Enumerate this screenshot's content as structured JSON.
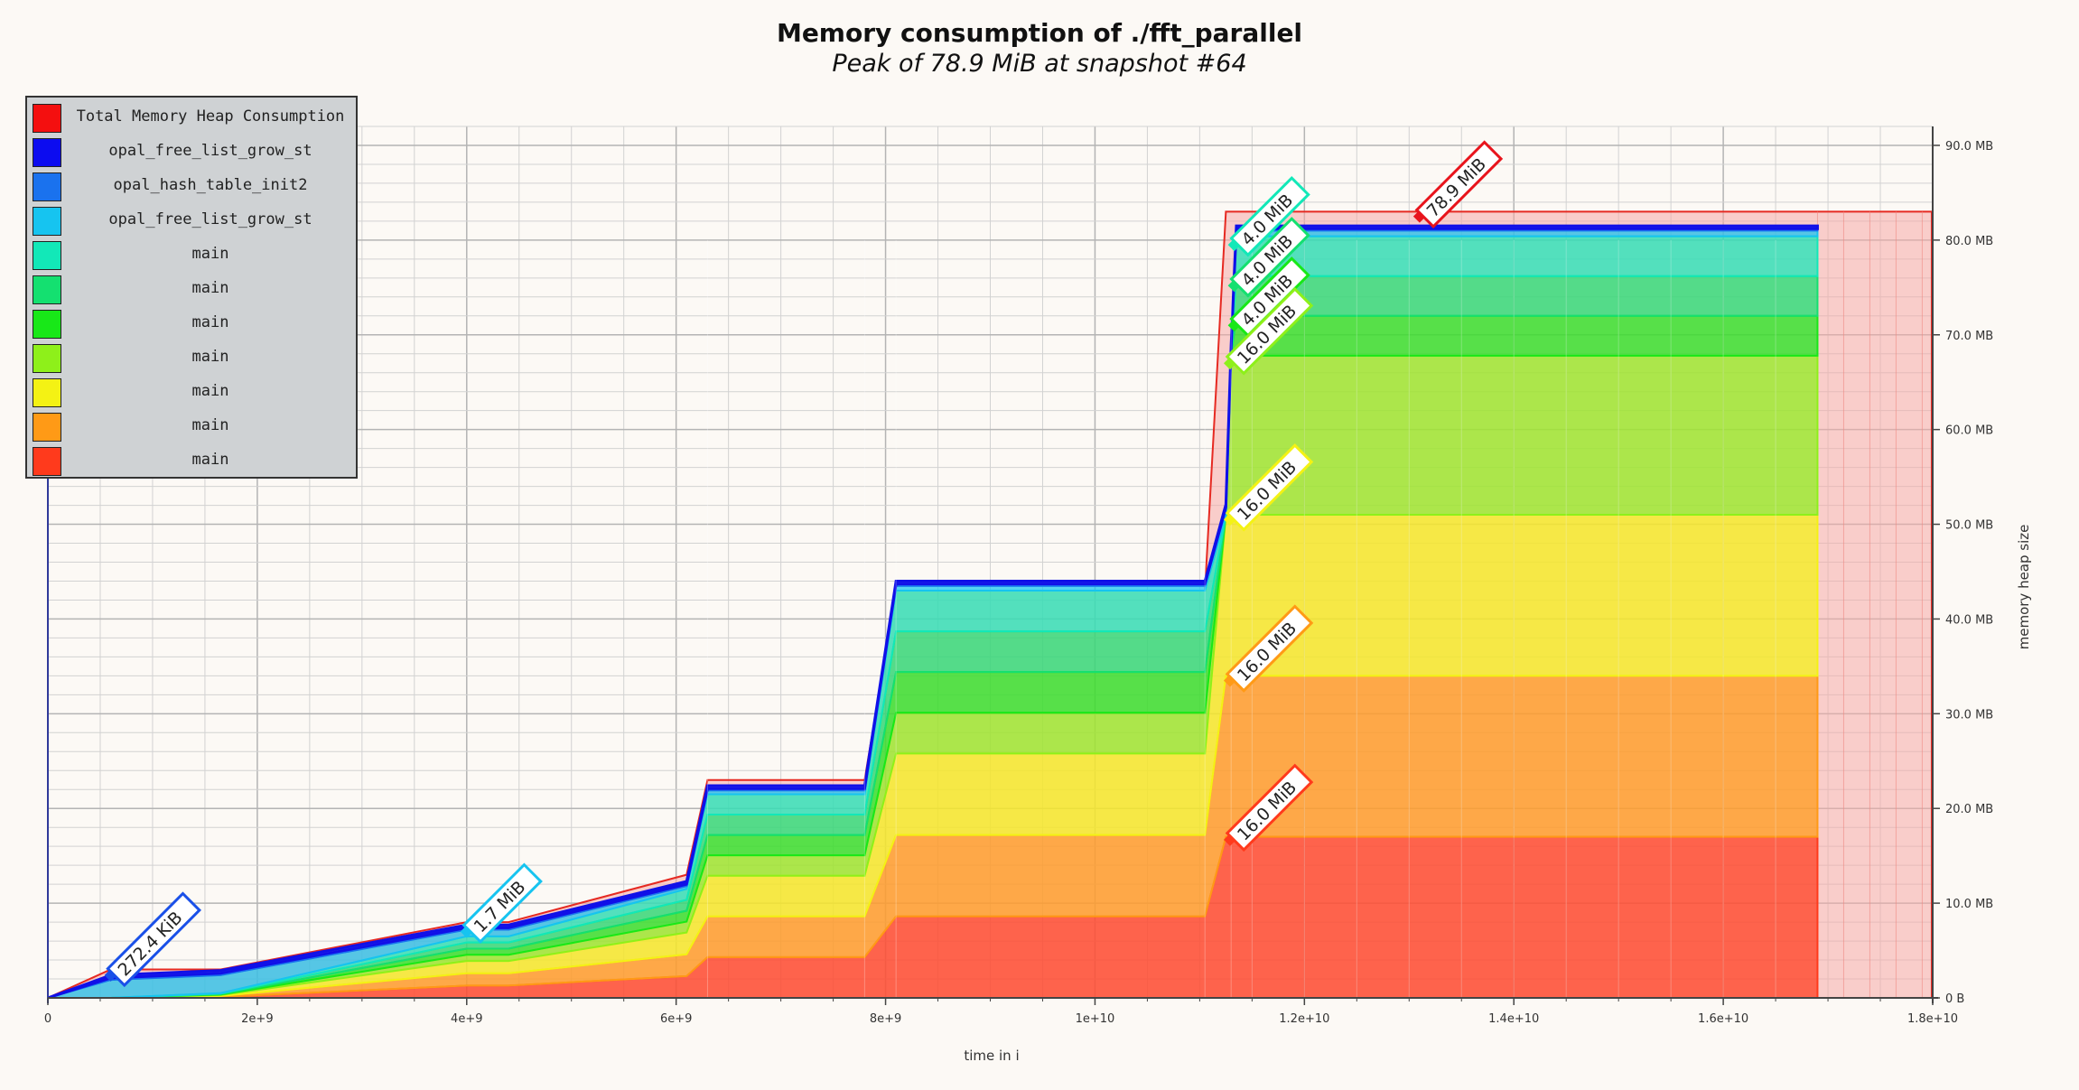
{
  "chart_data": {
    "type": "area",
    "title": "Memory consumption of ./fft_parallel",
    "subtitle": "Peak of 78.9 MiB at snapshot #64",
    "xlabel": "time in i",
    "ylabel": "memory heap size",
    "xlim": [
      0,
      18000000000.0
    ],
    "ylim": [
      0,
      92
    ],
    "x_ticks": [
      {
        "v": 0,
        "label": "0"
      },
      {
        "v": 2000000000.0,
        "label": "2e+9"
      },
      {
        "v": 4000000000.0,
        "label": "4e+9"
      },
      {
        "v": 6000000000.0,
        "label": "6e+9"
      },
      {
        "v": 8000000000.0,
        "label": "8e+9"
      },
      {
        "v": 10000000000.0,
        "label": "1e+10"
      },
      {
        "v": 12000000000.0,
        "label": "1.2e+10"
      },
      {
        "v": 14000000000.0,
        "label": "1.4e+10"
      },
      {
        "v": 16000000000.0,
        "label": "1.6e+10"
      },
      {
        "v": 18000000000.0,
        "label": "1.8e+10"
      }
    ],
    "y_ticks": [
      {
        "v": 0,
        "label": "0 B"
      },
      {
        "v": 10,
        "label": "10.0 MB"
      },
      {
        "v": 20,
        "label": "20.0 MB"
      },
      {
        "v": 30,
        "label": "30.0 MB"
      },
      {
        "v": 40,
        "label": "40.0 MB"
      },
      {
        "v": 50,
        "label": "50.0 MB"
      },
      {
        "v": 60,
        "label": "60.0 MB"
      },
      {
        "v": 70,
        "label": "70.0 MB"
      },
      {
        "v": 80,
        "label": "80.0 MB"
      },
      {
        "v": 90,
        "label": "90.0 MB"
      }
    ],
    "x": [
      0,
      600000000.0,
      1650000000.0,
      4000000000.0,
      4400000000.0,
      6100000000.0,
      6300000000.0,
      7800000000.0,
      8100000000.0,
      11050000000.0,
      11250000000.0,
      11300000000.0,
      11350000000.0,
      16900000000.0
    ],
    "total": [
      0,
      3,
      3,
      8,
      8,
      13,
      23,
      23,
      43,
      43,
      83,
      83,
      83,
      83
    ],
    "series": [
      {
        "name": "main",
        "color": "#ff3a1c",
        "values": [
          0,
          0,
          0.1,
          1.3,
          1.3,
          2.3,
          4.3,
          4.3,
          8.6,
          8.6,
          17,
          17,
          17,
          17
        ]
      },
      {
        "name": "main",
        "color": "#ff9a16",
        "values": [
          0,
          0,
          0.1,
          1.3,
          1.3,
          2.3,
          4.3,
          4.3,
          8.6,
          8.6,
          17,
          17,
          17,
          17
        ]
      },
      {
        "name": "main",
        "color": "#f4f214",
        "values": [
          0,
          0,
          0.1,
          1.3,
          1.3,
          2.3,
          4.3,
          4.3,
          8.6,
          8.6,
          17,
          17,
          17,
          17
        ]
      },
      {
        "name": "main",
        "color": "#8ef01a",
        "values": [
          0,
          0,
          0.05,
          0.65,
          0.65,
          1.15,
          2.15,
          2.15,
          4.3,
          4.3,
          0,
          16.8,
          16.8,
          16.8
        ]
      },
      {
        "name": "main",
        "color": "#18e818",
        "values": [
          0,
          0,
          0.05,
          0.65,
          0.65,
          1.15,
          2.15,
          2.15,
          4.3,
          4.3,
          0,
          0,
          4.2,
          4.2
        ]
      },
      {
        "name": "main",
        "color": "#14e070",
        "values": [
          0,
          0,
          0.05,
          0.65,
          0.65,
          1.15,
          2.15,
          2.15,
          4.3,
          4.3,
          0,
          0,
          4.2,
          4.2
        ]
      },
      {
        "name": "main",
        "color": "#12e8b8",
        "values": [
          0,
          0,
          0.05,
          0.65,
          0.65,
          1.15,
          2.15,
          2.15,
          4.3,
          4.3,
          0,
          0,
          4.2,
          4.2
        ]
      },
      {
        "name": "opal_free_list_grow_st",
        "color": "#16c4f0",
        "values": [
          0,
          1.9,
          1.9,
          0.7,
          0.7,
          0.3,
          0.4,
          0.4,
          0.5,
          0.5,
          0.6,
          0.6,
          0.6,
          0.6
        ]
      },
      {
        "name": "opal_hash_table_init2",
        "color": "#1a72ee",
        "values": [
          0,
          0.2,
          0.2,
          0.2,
          0.2,
          0.2,
          0.2,
          0.2,
          0.2,
          0.2,
          0.2,
          0.2,
          0.2,
          0.2
        ]
      },
      {
        "name": "opal_free_list_grow_st",
        "color": "#1010e8",
        "values": [
          0,
          0.3,
          0.3,
          0.3,
          0.3,
          0.3,
          0.3,
          0.3,
          0.3,
          0.3,
          0.3,
          0.3,
          0.3,
          0.3
        ]
      }
    ],
    "annotations": [
      {
        "text": "272.4 KiB",
        "x": 600000000.0,
        "y": 2.4,
        "color": "#1a50e8"
      },
      {
        "text": "1.7 MiB",
        "x": 4000000000.0,
        "y": 7,
        "color": "#16c4f0"
      },
      {
        "text": "78.9 MiB",
        "x": 13100000000.0,
        "y": 82.5,
        "color": "#e8141c"
      },
      {
        "text": "4.0 MiB",
        "x": 11330000000.0,
        "y": 79.5,
        "color": "#12e8b8"
      },
      {
        "text": "4.0 MiB",
        "x": 11330000000.0,
        "y": 75.2,
        "color": "#14e070"
      },
      {
        "text": "4.0 MiB",
        "x": 11330000000.0,
        "y": 71,
        "color": "#18e818"
      },
      {
        "text": "16.0 MiB",
        "x": 11290000000.0,
        "y": 67,
        "color": "#8ef01a"
      },
      {
        "text": "16.0 MiB",
        "x": 11290000000.0,
        "y": 50.5,
        "color": "#f4f214"
      },
      {
        "text": "16.0 MiB",
        "x": 11290000000.0,
        "y": 33.5,
        "color": "#ff9a16"
      },
      {
        "text": "16.0 MiB",
        "x": 11290000000.0,
        "y": 16.7,
        "color": "#ff3a1c"
      }
    ],
    "legend": [
      {
        "label": "Total Memory Heap Consumption",
        "color": "#f40f0f"
      },
      {
        "label": "opal_free_list_grow_st",
        "color": "#0c0cf0"
      },
      {
        "label": "opal_hash_table_init2",
        "color": "#1a72ee"
      },
      {
        "label": "opal_free_list_grow_st",
        "color": "#16c4f0"
      },
      {
        "label": "main",
        "color": "#12e8b8"
      },
      {
        "label": "main",
        "color": "#14e070"
      },
      {
        "label": "main",
        "color": "#18e818"
      },
      {
        "label": "main",
        "color": "#8ef01a"
      },
      {
        "label": "main",
        "color": "#f4f214"
      },
      {
        "label": "main",
        "color": "#ff9a16"
      },
      {
        "label": "main",
        "color": "#ff3a1c"
      }
    ],
    "legend_position": "top-left",
    "grid": true
  }
}
